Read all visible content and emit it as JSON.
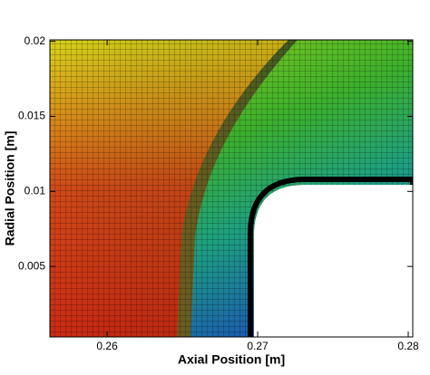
{
  "chart_data": {
    "type": "mesh",
    "xlabel": "Axial Position [m]",
    "ylabel": "Radial Position [m]",
    "xlim": [
      0.2562,
      0.2803
    ],
    "ylim": [
      0.0003,
      0.0201
    ],
    "xticks": [
      0.26,
      0.27,
      0.28
    ],
    "yticks": [
      0.005,
      0.01,
      0.015,
      0.02
    ]
  }
}
